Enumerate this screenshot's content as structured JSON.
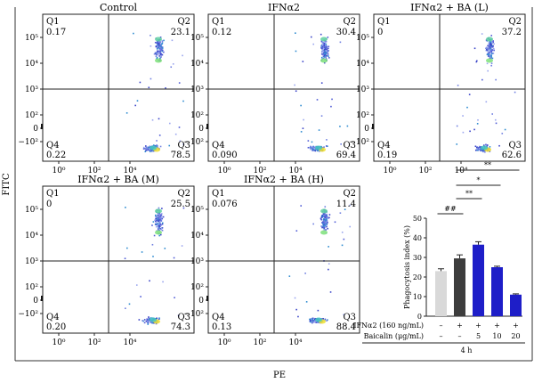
{
  "figure": {
    "y_axis_label": "FITC",
    "x_axis_label": "PE"
  },
  "chart_data": [
    {
      "type": "scatter",
      "title": "Control",
      "quadrants": {
        "Q1": "0.17",
        "Q2": "23.1",
        "Q3": "78.5",
        "Q4": "0.22"
      }
    },
    {
      "type": "scatter",
      "title": "IFNα2",
      "quadrants": {
        "Q1": "0.12",
        "Q2": "30.4",
        "Q3": "69.4",
        "Q4": "0.090"
      }
    },
    {
      "type": "scatter",
      "title": "IFNα2 + BA (L)",
      "quadrants": {
        "Q1": "0",
        "Q2": "37.2",
        "Q3": "62.6",
        "Q4": "0.19"
      }
    },
    {
      "type": "scatter",
      "title": "IFNα2 + BA (M)",
      "quadrants": {
        "Q1": "0",
        "Q2": "25.5",
        "Q3": "74.3",
        "Q4": "0.20"
      }
    },
    {
      "type": "scatter",
      "title": "IFNα2 + BA (H)",
      "quadrants": {
        "Q1": "0.076",
        "Q2": "11.4",
        "Q3": "88.4",
        "Q4": "0.13"
      }
    },
    {
      "type": "bar",
      "ylabel": "Phagocytosis index (%)",
      "ylim": [
        0,
        50
      ],
      "yticks": [
        "0",
        "10",
        "20",
        "30",
        "40",
        "50"
      ],
      "values": [
        23,
        29.5,
        36.5,
        25,
        11
      ],
      "errors": [
        1.2,
        1.8,
        1.5,
        0.5,
        0.4
      ],
      "colors": [
        "#d9d9d9",
        "#3d3d3d",
        "#1e1ec8",
        "#1e1ec8",
        "#1e1ec8"
      ],
      "row_labels": [
        "IFNα2 (160 ng/mL)",
        "Baicalin (μg/mL)"
      ],
      "ifn_row": [
        "–",
        "+",
        "+",
        "+",
        "+"
      ],
      "baicalin_row": [
        "–",
        "–",
        "5",
        "10",
        "20"
      ],
      "time_label": "4 h",
      "significance": [
        "##",
        "**",
        "*",
        "**"
      ]
    }
  ],
  "axis_ticks": {
    "y": [
      "10⁵",
      "10⁴",
      "10³",
      "10²",
      "0",
      "−10²"
    ],
    "x": [
      "10⁰",
      "10²",
      "10⁴"
    ]
  }
}
